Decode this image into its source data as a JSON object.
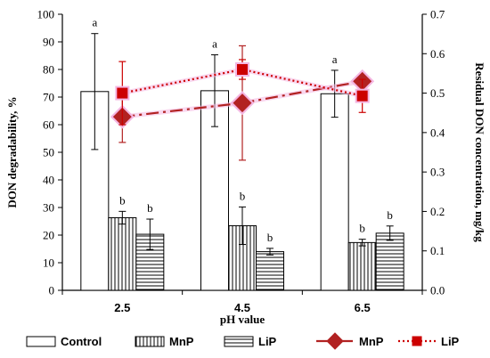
{
  "chart_data": {
    "type": "bar+line",
    "categories": [
      "2.5",
      "4.5",
      "6.5"
    ],
    "xlabel": "pH value",
    "ylabel": "DON degradability, %",
    "y2label": "Residual DON concentration, mg/kg",
    "ylim": [
      0,
      100
    ],
    "y2lim": [
      0,
      0.7
    ],
    "yticks": [
      0,
      10,
      20,
      30,
      40,
      50,
      60,
      70,
      80,
      90,
      100
    ],
    "y2ticks": [
      "0.0",
      "0.1",
      "0.2",
      "0.3",
      "0.4",
      "0.5",
      "0.6",
      "0.7"
    ],
    "bar_series": [
      {
        "name": "Control",
        "pattern": "white",
        "values": [
          72,
          72.3,
          71.2
        ],
        "errors": [
          21,
          13,
          8.5
        ],
        "labels": [
          "a",
          "a",
          "a"
        ]
      },
      {
        "name": "MnP",
        "pattern": "vertical",
        "values": [
          26.3,
          23.4,
          17.3
        ],
        "errors": [
          2.3,
          6.8,
          1.2
        ],
        "labels": [
          "b",
          "b",
          "b"
        ]
      },
      {
        "name": "LiP",
        "pattern": "horizontal",
        "values": [
          20.3,
          14,
          20.7
        ],
        "errors": [
          5.5,
          1.2,
          2.6
        ],
        "labels": [
          "b",
          "b",
          "b"
        ]
      }
    ],
    "line_series": [
      {
        "name": "MnP",
        "axis": "right",
        "marker": "diamond",
        "style": "dash-dot",
        "color": "#b22222",
        "values": [
          0.44,
          0.475,
          0.53
        ],
        "errors": [
          0.065,
          0.145,
          0.015
        ]
      },
      {
        "name": "LiP",
        "axis": "right",
        "marker": "square",
        "style": "dotted",
        "color": "#cc0000",
        "values": [
          0.5,
          0.56,
          0.493
        ],
        "errors": [
          0.08,
          0.025,
          0.042
        ]
      }
    ],
    "legend": "bottom",
    "grid": false
  },
  "colors": {
    "line_mnp": "#b22222",
    "line_lip": "#cc0000",
    "glow": "#f4b6e2",
    "bar_stroke": "#000000"
  }
}
